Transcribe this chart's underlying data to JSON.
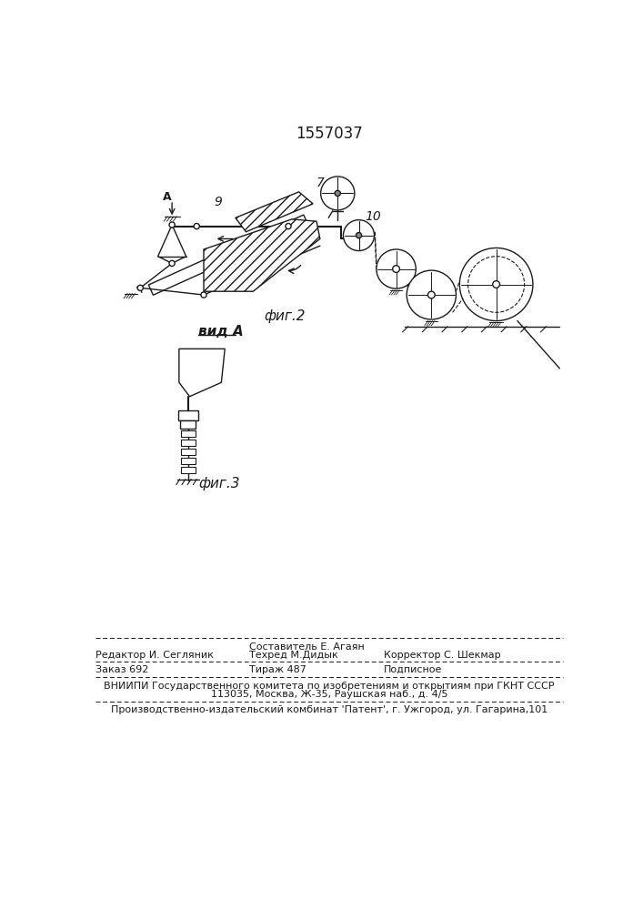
{
  "patent_number": "1557037",
  "bg_color": "#ffffff",
  "text_color": "#1a1a1a",
  "footer": {
    "editor_line1": "Составитель Е. Агаян",
    "editor_line2_left": "Редактор И. Сегляник",
    "editor_line2_mid": "Техред М.Дидык",
    "editor_line2_right": "Корректор С. Шекмар",
    "order": "Заказ 692",
    "tirazh": "Тираж 487",
    "podpisnoe": "Подписное",
    "vniiipi_line1": "ВНИИПИ Государственного комитета по изобретениям и открытиям при ГКНТ СССР",
    "vniiipi_line2": "113035, Москва, Ж-35, Раушская наб., д. 4/5",
    "factory_line": "Производственно-издательский комбинат 'Патент', г. Ужгород, ул. Гагарина,101"
  }
}
